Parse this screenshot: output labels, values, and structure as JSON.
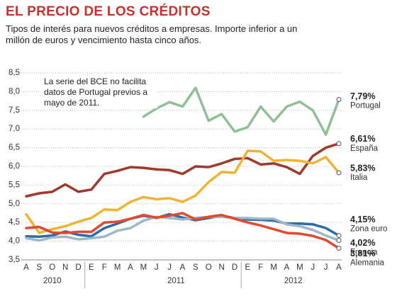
{
  "chart_data": {
    "type": "line",
    "title": "EL PRECIO DE LOS CRÉDITOS",
    "subtitle": "Tipos de interés para nuevos créditos a empresas. Importe inferior a un millón de euros y vencimiento hasta cinco años.",
    "annotation": "La serie del BCE no facilita datos de Portugal previos a mayo de 2011.",
    "categories": [
      "A",
      "S",
      "O",
      "N",
      "D",
      "E",
      "F",
      "M",
      "A",
      "M",
      "J",
      "J",
      "A",
      "S",
      "O",
      "N",
      "D",
      "E",
      "F",
      "M",
      "A",
      "M",
      "J",
      "J",
      "A"
    ],
    "year_labels": [
      "2010",
      "2011",
      "2012"
    ],
    "ylim": [
      3.5,
      8.5
    ],
    "yticks": [
      {
        "value": 3.5,
        "label": "3,5"
      },
      {
        "value": 4,
        "label": "4,0"
      },
      {
        "value": 4.5,
        "label": "4,5"
      },
      {
        "value": 5,
        "label": "5,0"
      },
      {
        "value": 5.5,
        "label": "5,5"
      },
      {
        "value": 6,
        "label": "6,0"
      },
      {
        "value": 6.5,
        "label": "6,5"
      },
      {
        "value": 7,
        "label": "7,0"
      },
      {
        "value": 7.5,
        "label": "7,5"
      },
      {
        "value": 8,
        "label": "8,0"
      },
      {
        "value": 8.5,
        "label": "8,5"
      }
    ],
    "grid": true,
    "series": [
      {
        "name": "Portugal",
        "color": "#8fc095",
        "values": [
          null,
          null,
          null,
          null,
          null,
          null,
          null,
          null,
          null,
          7.33,
          7.55,
          7.72,
          7.6,
          8.1,
          7.22,
          7.4,
          6.93,
          7.05,
          7.6,
          7.2,
          7.6,
          7.73,
          7.5,
          6.85,
          7.79
        ],
        "value_labels": [
          null,
          null,
          null,
          null,
          null,
          null,
          null,
          null,
          null,
          null,
          null,
          null,
          null,
          null,
          null,
          null,
          null,
          null,
          null,
          null,
          null,
          null,
          null,
          null,
          "7,79%"
        ]
      },
      {
        "name": "España",
        "color": "#9e3a2c",
        "values": [
          5.2,
          5.28,
          5.32,
          5.52,
          5.32,
          5.38,
          5.8,
          5.88,
          5.98,
          5.96,
          5.92,
          5.9,
          5.8,
          6.0,
          5.98,
          6.08,
          6.2,
          6.22,
          6.05,
          6.08,
          5.98,
          5.8,
          6.28,
          6.5,
          6.61
        ],
        "value_labels": [
          null,
          null,
          null,
          null,
          null,
          null,
          null,
          null,
          null,
          null,
          null,
          null,
          null,
          null,
          null,
          null,
          null,
          null,
          null,
          null,
          null,
          null,
          null,
          null,
          "6,61%"
        ]
      },
      {
        "name": "Italia",
        "color": "#f2b233",
        "values": [
          4.72,
          4.22,
          4.32,
          4.4,
          4.52,
          4.62,
          4.85,
          4.83,
          5.05,
          5.18,
          5.12,
          5.15,
          5.05,
          5.22,
          5.58,
          5.85,
          5.83,
          6.42,
          6.4,
          6.15,
          6.17,
          6.15,
          6.08,
          6.25,
          5.83
        ],
        "value_labels": [
          null,
          null,
          null,
          null,
          null,
          null,
          null,
          null,
          null,
          null,
          null,
          null,
          null,
          null,
          null,
          null,
          null,
          null,
          null,
          null,
          null,
          null,
          null,
          null,
          "5,83%"
        ]
      },
      {
        "name": "Zona euro",
        "color": "#2e6aa6",
        "values": [
          4.13,
          4.12,
          4.15,
          4.26,
          4.17,
          4.13,
          4.35,
          4.47,
          4.6,
          4.68,
          4.62,
          4.72,
          4.63,
          4.56,
          4.62,
          4.68,
          4.62,
          4.58,
          4.57,
          4.55,
          4.47,
          4.47,
          4.45,
          4.35,
          4.15
        ],
        "value_labels": [
          null,
          null,
          null,
          null,
          null,
          null,
          null,
          null,
          null,
          null,
          null,
          null,
          null,
          null,
          null,
          null,
          null,
          null,
          null,
          null,
          null,
          null,
          null,
          null,
          "4,15%"
        ]
      },
      {
        "name": "Francia",
        "color": "#9bb9c9",
        "values": [
          4.08,
          4.02,
          4.1,
          4.12,
          4.05,
          4.08,
          4.12,
          4.28,
          4.35,
          4.55,
          4.65,
          4.62,
          4.58,
          4.62,
          4.65,
          4.65,
          4.62,
          4.62,
          4.6,
          4.6,
          4.45,
          4.4,
          4.3,
          4.15,
          4.02
        ],
        "value_labels": [
          null,
          null,
          null,
          null,
          null,
          null,
          null,
          null,
          null,
          null,
          null,
          null,
          null,
          null,
          null,
          null,
          null,
          null,
          null,
          null,
          null,
          null,
          null,
          null,
          "4,02%"
        ]
      },
      {
        "name": "Alemania",
        "color": "#e04a2e",
        "values": [
          4.35,
          4.38,
          4.23,
          4.22,
          4.25,
          4.25,
          4.5,
          4.52,
          4.6,
          4.7,
          4.63,
          4.68,
          4.75,
          4.58,
          4.65,
          4.7,
          4.6,
          4.5,
          4.42,
          4.32,
          4.22,
          4.2,
          4.14,
          4.03,
          3.81
        ],
        "value_labels": [
          null,
          null,
          null,
          null,
          null,
          null,
          null,
          null,
          null,
          null,
          null,
          null,
          null,
          null,
          null,
          null,
          null,
          null,
          null,
          null,
          null,
          null,
          null,
          null,
          "3,81%"
        ]
      }
    ]
  }
}
